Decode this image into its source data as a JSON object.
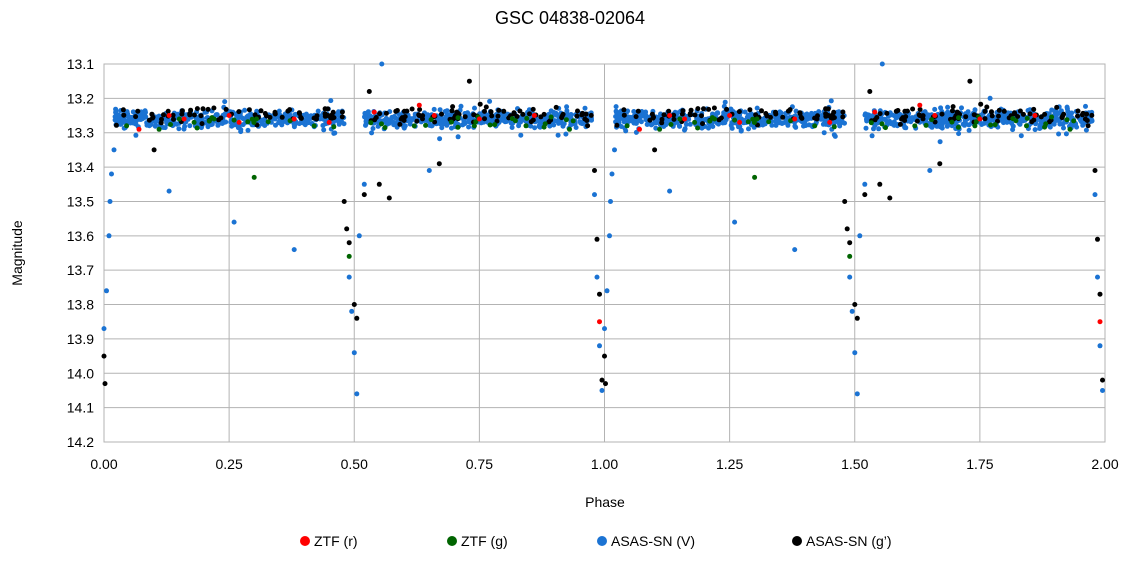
{
  "chart_data": {
    "type": "scatter",
    "title": "GSC 04838-02064",
    "xlabel": "Phase",
    "ylabel": "Magnitude",
    "xlim": [
      0.0,
      2.0
    ],
    "ylim": [
      13.1,
      14.2
    ],
    "y_inverted": true,
    "x_ticks": [
      "0.00",
      "0.25",
      "0.50",
      "0.75",
      "1.00",
      "1.25",
      "1.50",
      "1.75",
      "2.00"
    ],
    "y_ticks": [
      "13.1",
      "13.2",
      "13.3",
      "13.4",
      "13.5",
      "13.6",
      "13.7",
      "13.8",
      "13.9",
      "14.0",
      "14.1",
      "14.2"
    ],
    "grid": true,
    "legend_position": "bottom",
    "series": [
      {
        "name": "ZTF (r)",
        "color": "#ff0000",
        "points": [
          [
            0.07,
            13.29
          ],
          [
            0.13,
            13.25
          ],
          [
            0.16,
            13.26
          ],
          [
            0.25,
            13.25
          ],
          [
            0.27,
            13.27
          ],
          [
            0.38,
            13.26
          ],
          [
            0.45,
            13.27
          ],
          [
            0.54,
            13.24
          ],
          [
            0.63,
            13.22
          ],
          [
            0.66,
            13.25
          ],
          [
            0.75,
            13.26
          ],
          [
            0.86,
            13.25
          ],
          [
            0.99,
            13.85
          ],
          [
            1.07,
            13.29
          ],
          [
            1.13,
            13.25
          ],
          [
            1.16,
            13.26
          ],
          [
            1.25,
            13.25
          ],
          [
            1.27,
            13.27
          ],
          [
            1.38,
            13.26
          ],
          [
            1.45,
            13.27
          ],
          [
            1.54,
            13.24
          ],
          [
            1.63,
            13.22
          ],
          [
            1.66,
            13.25
          ],
          [
            1.75,
            13.26
          ],
          [
            1.86,
            13.25
          ],
          [
            1.99,
            13.85
          ]
        ]
      },
      {
        "name": "ZTF (g)",
        "color": "#006400",
        "points": [
          [
            0.11,
            13.29
          ],
          [
            0.18,
            13.27
          ],
          [
            0.22,
            13.26
          ],
          [
            0.3,
            13.43
          ],
          [
            0.42,
            13.28
          ],
          [
            0.49,
            13.66
          ],
          [
            0.62,
            13.28
          ],
          [
            0.74,
            13.28
          ],
          [
            0.93,
            13.29
          ],
          [
            1.11,
            13.29
          ],
          [
            1.18,
            13.27
          ],
          [
            1.22,
            13.26
          ],
          [
            1.3,
            13.43
          ],
          [
            1.42,
            13.28
          ],
          [
            1.49,
            13.66
          ],
          [
            1.62,
            13.28
          ],
          [
            1.74,
            13.28
          ],
          [
            1.93,
            13.29
          ]
        ]
      },
      {
        "name": "ASAS-SN (V)",
        "color": "#1b73d3",
        "points": [
          [
            0.0,
            13.87
          ],
          [
            0.005,
            13.76
          ],
          [
            0.01,
            13.6
          ],
          [
            0.012,
            13.5
          ],
          [
            0.015,
            13.42
          ],
          [
            0.02,
            13.35
          ],
          [
            0.13,
            13.47
          ],
          [
            0.26,
            13.56
          ],
          [
            0.38,
            13.64
          ],
          [
            0.49,
            13.72
          ],
          [
            0.495,
            13.82
          ],
          [
            0.5,
            13.94
          ],
          [
            0.505,
            14.06
          ],
          [
            0.51,
            13.6
          ],
          [
            0.52,
            13.45
          ],
          [
            0.555,
            13.1
          ],
          [
            0.65,
            13.41
          ],
          [
            0.98,
            13.48
          ],
          [
            0.985,
            13.72
          ],
          [
            0.99,
            13.92
          ],
          [
            0.995,
            14.05
          ],
          [
            1.0,
            13.87
          ],
          [
            1.005,
            13.76
          ],
          [
            1.01,
            13.6
          ],
          [
            1.012,
            13.5
          ],
          [
            1.015,
            13.42
          ],
          [
            1.02,
            13.35
          ],
          [
            1.13,
            13.47
          ],
          [
            1.26,
            13.56
          ],
          [
            1.38,
            13.64
          ],
          [
            1.49,
            13.72
          ],
          [
            1.495,
            13.82
          ],
          [
            1.5,
            13.94
          ],
          [
            1.505,
            14.06
          ],
          [
            1.51,
            13.6
          ],
          [
            1.52,
            13.45
          ],
          [
            1.555,
            13.1
          ],
          [
            1.65,
            13.41
          ],
          [
            1.98,
            13.48
          ],
          [
            1.985,
            13.72
          ],
          [
            1.99,
            13.92
          ],
          [
            1.995,
            14.05
          ]
        ]
      },
      {
        "name": "ASAS-SN (g’)",
        "color": "#000000",
        "points": [
          [
            0.0,
            13.95
          ],
          [
            0.002,
            14.03
          ],
          [
            0.1,
            13.35
          ],
          [
            0.48,
            13.5
          ],
          [
            0.485,
            13.58
          ],
          [
            0.49,
            13.62
          ],
          [
            0.5,
            13.8
          ],
          [
            0.505,
            13.84
          ],
          [
            0.52,
            13.48
          ],
          [
            0.53,
            13.18
          ],
          [
            0.55,
            13.45
          ],
          [
            0.57,
            13.49
          ],
          [
            0.67,
            13.39
          ],
          [
            0.73,
            13.15
          ],
          [
            0.98,
            13.41
          ],
          [
            0.985,
            13.61
          ],
          [
            0.99,
            13.77
          ],
          [
            0.995,
            14.02
          ],
          [
            1.0,
            13.95
          ],
          [
            1.002,
            14.03
          ],
          [
            1.1,
            13.35
          ],
          [
            1.48,
            13.5
          ],
          [
            1.485,
            13.58
          ],
          [
            1.49,
            13.62
          ],
          [
            1.5,
            13.8
          ],
          [
            1.505,
            13.84
          ],
          [
            1.52,
            13.48
          ],
          [
            1.53,
            13.18
          ],
          [
            1.55,
            13.45
          ],
          [
            1.57,
            13.49
          ],
          [
            1.67,
            13.39
          ],
          [
            1.73,
            13.15
          ],
          [
            1.98,
            13.41
          ],
          [
            1.985,
            13.61
          ],
          [
            1.99,
            13.77
          ],
          [
            1.995,
            14.02
          ]
        ]
      }
    ],
    "band": {
      "description_series": "ASAS-SN (V)",
      "magnitude_center": 13.26,
      "magnitude_spread": 0.045,
      "eclipse_phases": [
        0.0,
        0.5,
        1.0,
        1.5,
        2.0
      ]
    }
  }
}
